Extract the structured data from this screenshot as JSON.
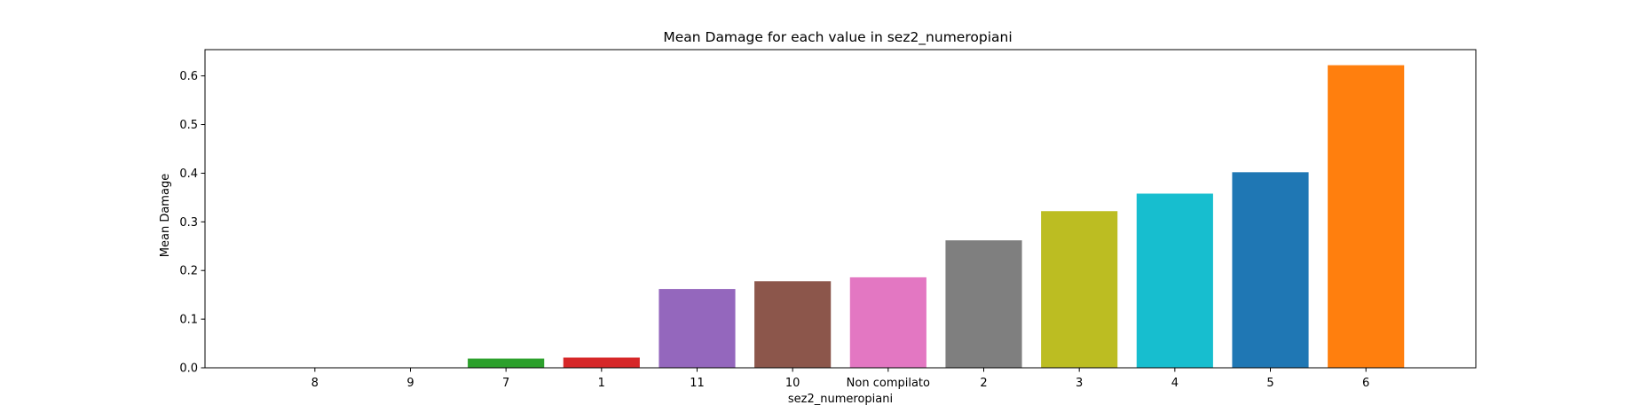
{
  "chart_data": {
    "type": "bar",
    "title": "Mean Damage for each value in sez2_numeropiani",
    "xlabel": "sez2_numeropiani",
    "ylabel": "Mean Damage",
    "categories": [
      "8",
      "9",
      "7",
      "1",
      "11",
      "10",
      "Non compilato",
      "2",
      "3",
      "4",
      "5",
      "6"
    ],
    "values": [
      0.0,
      0.0,
      0.019,
      0.021,
      0.162,
      0.178,
      0.186,
      0.262,
      0.322,
      0.358,
      0.402,
      0.622
    ],
    "colors": [
      "#1f77b4",
      "#ff7f0e",
      "#2ca02c",
      "#d62728",
      "#9467bd",
      "#8c564b",
      "#e377c2",
      "#7f7f7f",
      "#bcbd22",
      "#17becf",
      "#1f77b4",
      "#ff7f0e"
    ],
    "ylim": [
      0,
      0.654
    ],
    "yticks": [
      0.0,
      0.1,
      0.2,
      0.3,
      0.4,
      0.5,
      0.6
    ],
    "ytick_labels": [
      "0.0",
      "0.1",
      "0.2",
      "0.3",
      "0.4",
      "0.5",
      "0.6"
    ],
    "grid": false,
    "legend": "none"
  }
}
